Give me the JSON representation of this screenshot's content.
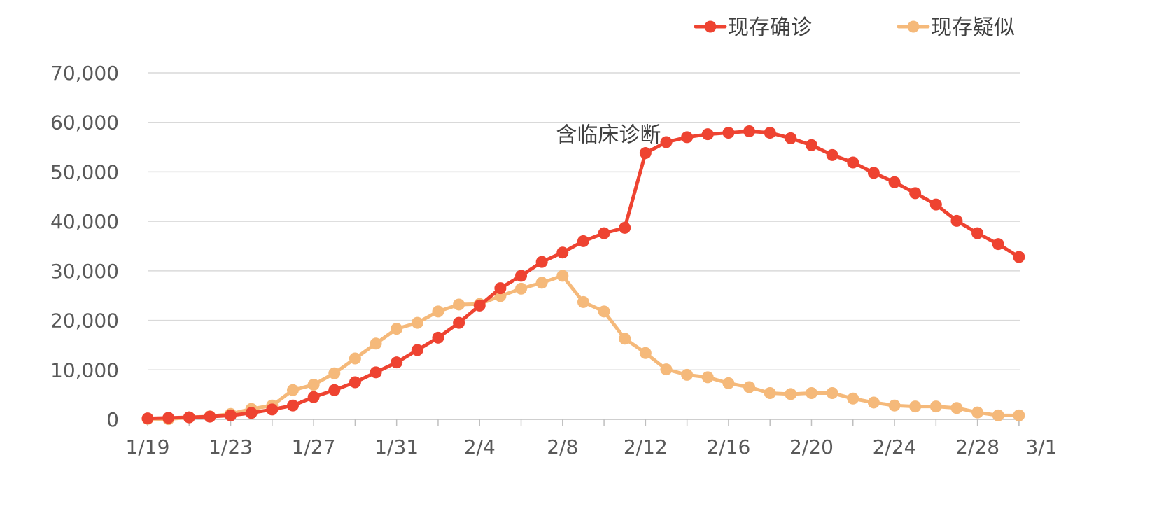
{
  "chart_data": {
    "type": "line",
    "title": "",
    "xlabel": "",
    "ylabel": "",
    "x": [
      "1/19",
      "1/20",
      "1/21",
      "1/22",
      "1/23",
      "1/24",
      "1/25",
      "1/26",
      "1/27",
      "1/28",
      "1/29",
      "1/30",
      "1/31",
      "2/1",
      "2/2",
      "2/3",
      "2/4",
      "2/5",
      "2/6",
      "2/7",
      "2/8",
      "2/9",
      "2/10",
      "2/11",
      "2/12",
      "2/13",
      "2/14",
      "2/15",
      "2/16",
      "2/17",
      "2/18",
      "2/19",
      "2/20",
      "2/21",
      "2/22",
      "2/23",
      "2/24",
      "2/25",
      "2/26",
      "2/27",
      "2/28",
      "2/29",
      "3/1"
    ],
    "x_tick_labels": [
      "1/19",
      "1/23",
      "1/27",
      "1/31",
      "2/4",
      "2/8",
      "2/12",
      "2/16",
      "2/20",
      "2/24",
      "2/28",
      "3/1"
    ],
    "ylim": [
      0,
      70000
    ],
    "y_ticks": [
      0,
      10000,
      20000,
      30000,
      40000,
      50000,
      60000,
      70000
    ],
    "y_tick_labels": [
      "0",
      "10,000",
      "20,000",
      "30,000",
      "40,000",
      "50,000",
      "60,000",
      "70,000"
    ],
    "grid": true,
    "legend_position": "top-right",
    "series": [
      {
        "name": "现存确诊",
        "color": "#ee4331",
        "values": [
          200,
          300,
          400,
          550,
          800,
          1300,
          2000,
          2800,
          4500,
          5900,
          7500,
          9500,
          11500,
          14000,
          16500,
          19500,
          23000,
          26500,
          29000,
          31800,
          33700,
          36000,
          37600,
          38700,
          53800,
          56000,
          57000,
          57600,
          57900,
          58200,
          57900,
          56800,
          55400,
          53400,
          51900,
          49800,
          47900,
          45700,
          43400,
          40100,
          37600,
          35400,
          32800
        ]
      },
      {
        "name": "现存疑似",
        "color": "#f5b97a",
        "values": [
          100,
          50,
          400,
          600,
          1100,
          2100,
          2800,
          5900,
          7000,
          9300,
          12300,
          15300,
          18300,
          19500,
          21800,
          23200,
          23300,
          24900,
          26400,
          27600,
          29000,
          23700,
          21800,
          16300,
          13400,
          10100,
          9000,
          8500,
          7300,
          6500,
          5300,
          5100,
          5300,
          5300,
          4200,
          3400,
          2800,
          2600,
          2600,
          2300,
          1400,
          800,
          800
        ]
      }
    ],
    "annotations": [
      {
        "text": "含临床诊断",
        "x": "2/12",
        "y": 53800
      }
    ]
  }
}
